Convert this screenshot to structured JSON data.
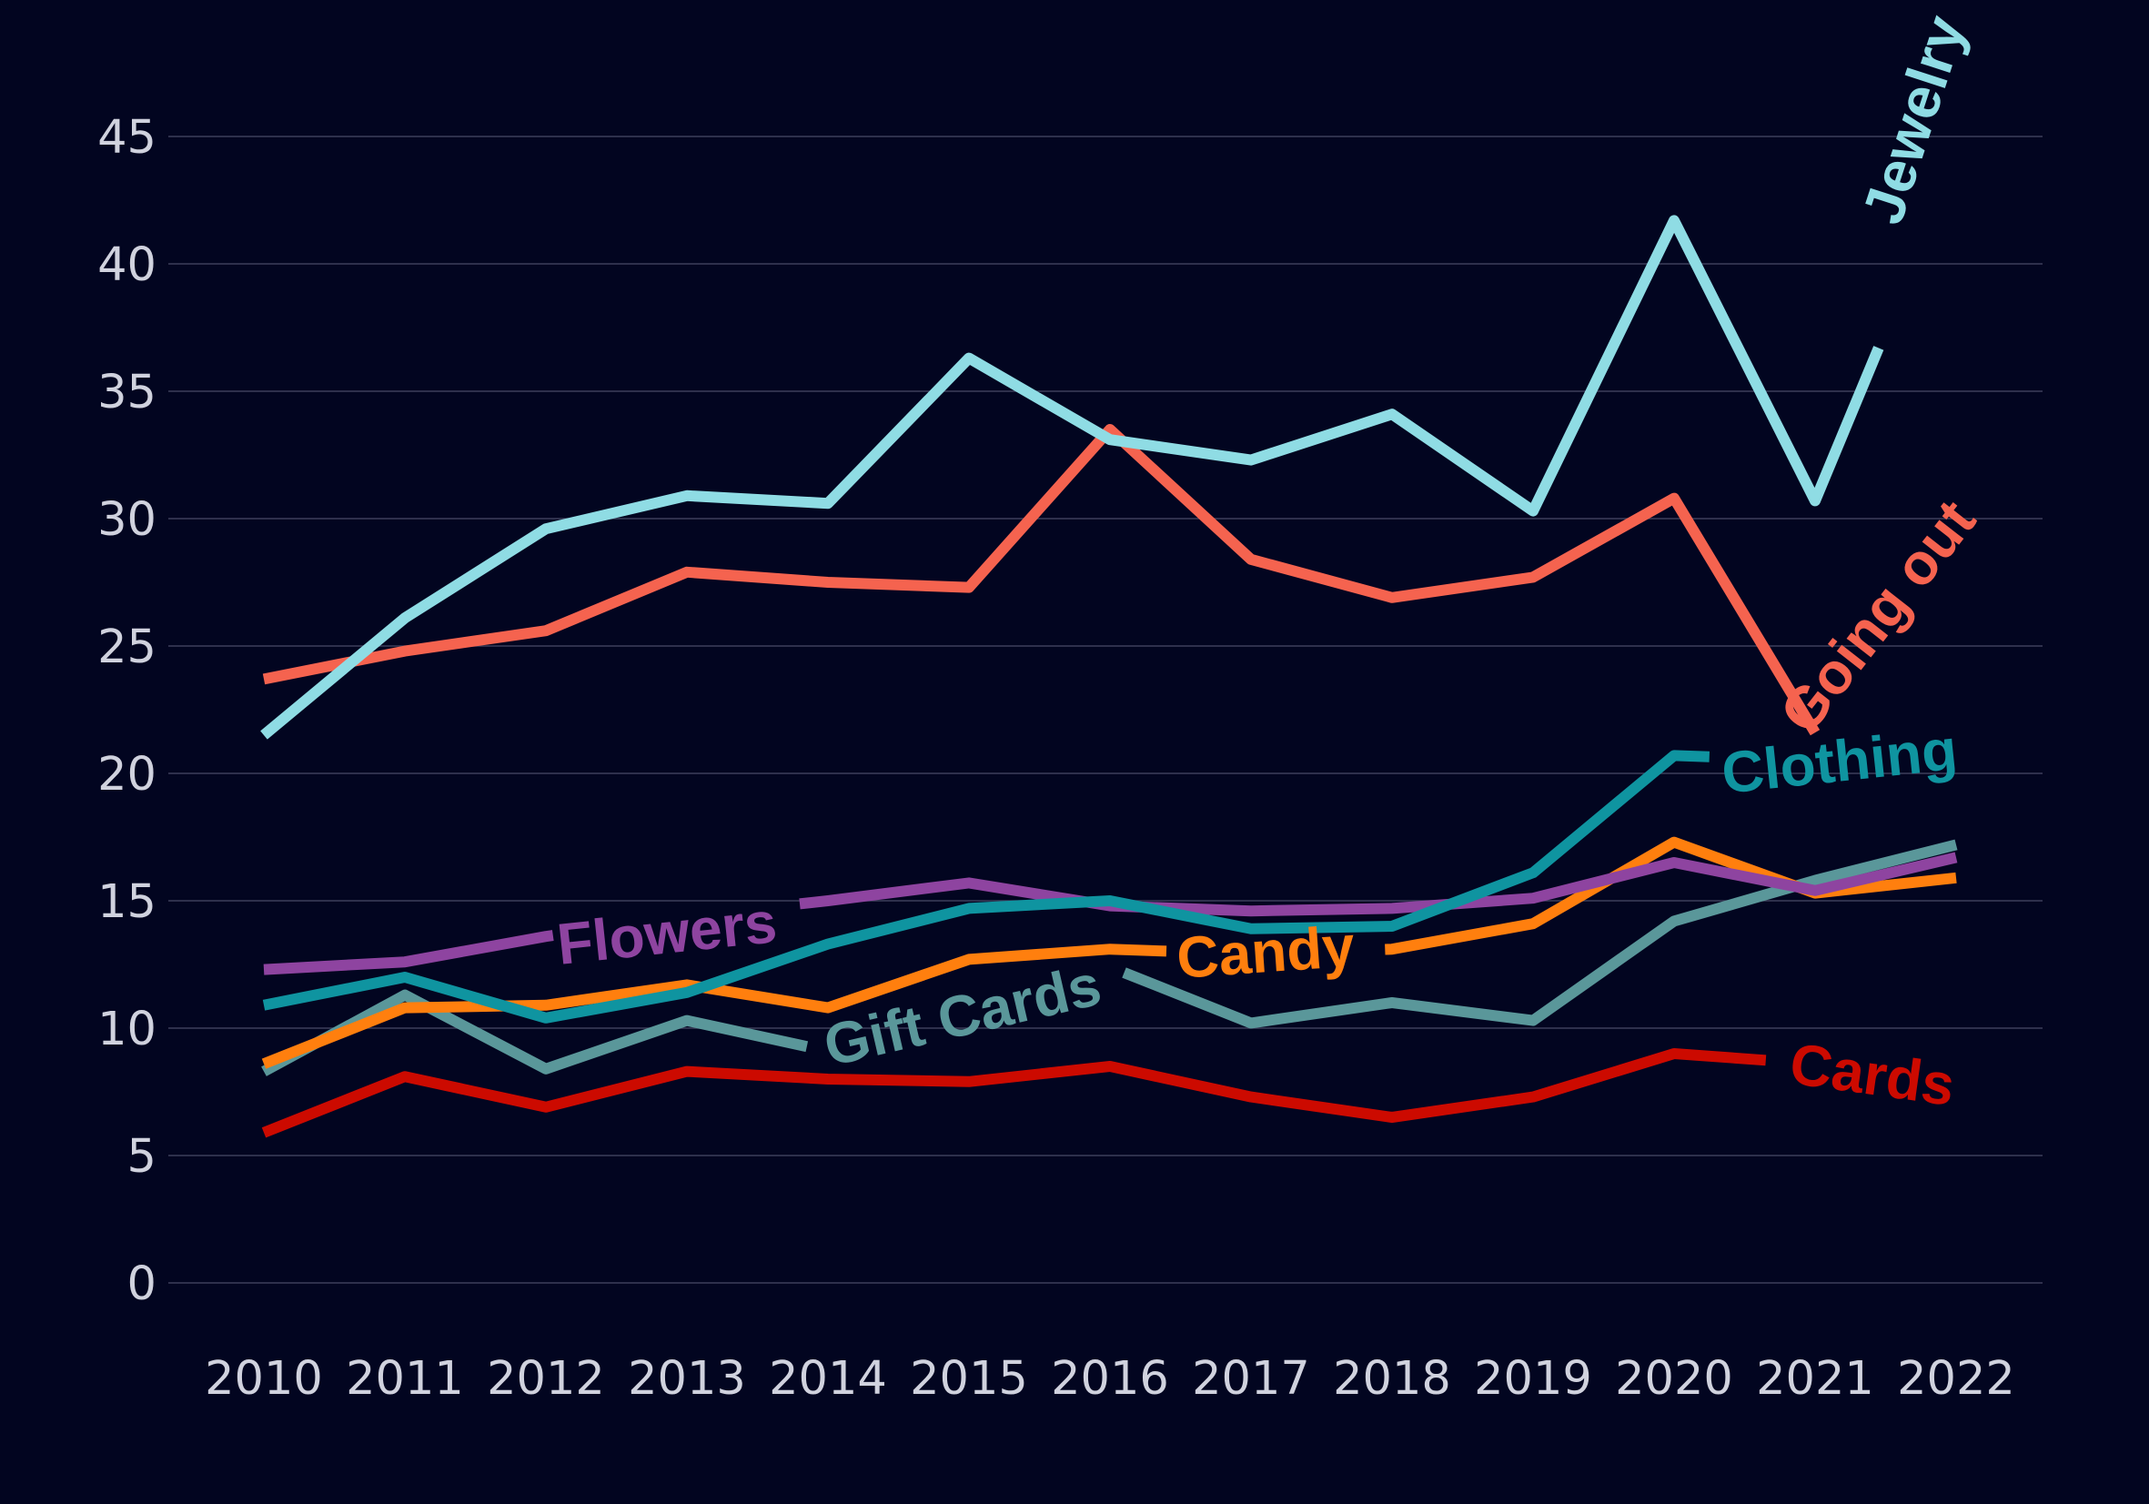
{
  "chart_data": {
    "type": "line",
    "title": "",
    "xlabel": "",
    "ylabel": "",
    "x": [
      2010,
      2011,
      2012,
      2013,
      2014,
      2015,
      2016,
      2017,
      2018,
      2019,
      2020,
      2021,
      2022
    ],
    "x_tick_labels": [
      "2010",
      "2011",
      "2012",
      "2013",
      "2014",
      "2015",
      "2016",
      "2017",
      "2018",
      "2019",
      "2020",
      "2021",
      "2022"
    ],
    "ylim": [
      0,
      46
    ],
    "y_ticks": [
      0,
      5,
      10,
      15,
      20,
      25,
      30,
      35,
      40,
      45
    ],
    "y_tick_labels": [
      "0",
      "5",
      "10",
      "15",
      "20",
      "25",
      "30",
      "35",
      "40",
      "45"
    ],
    "grid": true,
    "legend": "direct labels on lines",
    "background": "#020520",
    "series": [
      {
        "name": "Jewelry",
        "color": "#8fdce4",
        "values": [
          21.5,
          26.1,
          29.6,
          30.9,
          30.6,
          36.3,
          33.1,
          32.3,
          34.1,
          30.3,
          41.7,
          30.7,
          39.0
        ]
      },
      {
        "name": "Going out",
        "color": "#f5634f",
        "values": [
          23.7,
          24.8,
          25.6,
          27.9,
          27.5,
          27.3,
          33.5,
          28.4,
          26.9,
          27.7,
          30.8,
          21.6,
          null
        ]
      },
      {
        "name": "Clothing",
        "color": "#0f94a0",
        "values": [
          10.9,
          12.0,
          10.4,
          11.4,
          13.3,
          14.7,
          15.0,
          13.9,
          14.0,
          16.1,
          20.7,
          20.5,
          null
        ]
      },
      {
        "name": "Flowers",
        "color": "#8e44a0",
        "values": [
          12.3,
          12.6,
          13.6,
          14.4,
          15.0,
          15.7,
          14.8,
          14.6,
          14.7,
          15.1,
          16.5,
          15.4,
          16.7
        ]
      },
      {
        "name": "Candy",
        "color": "#ff7f0e",
        "values": [
          8.6,
          10.8,
          10.9,
          11.7,
          10.8,
          12.7,
          13.1,
          12.9,
          13.1,
          14.1,
          17.3,
          15.3,
          15.9
        ]
      },
      {
        "name": "Gift Cards",
        "color": "#5a979a",
        "values": [
          8.3,
          11.3,
          8.4,
          10.3,
          9.1,
          12.1,
          12.4,
          10.2,
          11.0,
          10.3,
          14.2,
          15.8,
          17.2
        ]
      },
      {
        "name": "Cards",
        "color": "#cc0a00",
        "values": [
          5.9,
          8.1,
          6.9,
          8.3,
          8.0,
          7.9,
          8.5,
          7.3,
          6.5,
          7.3,
          9.0,
          8.6,
          null
        ]
      }
    ]
  }
}
